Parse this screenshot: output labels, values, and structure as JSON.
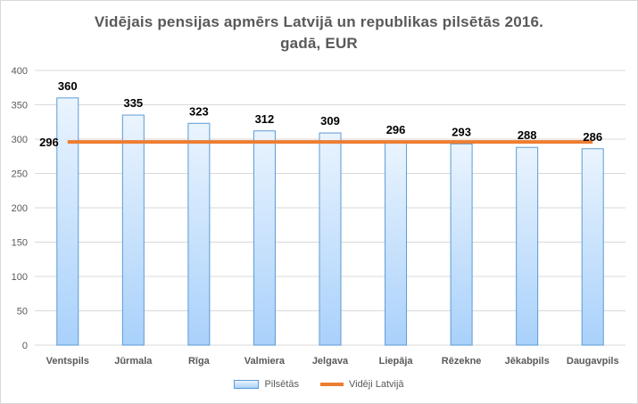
{
  "chart_data": {
    "type": "bar",
    "title_line1": "Vidējais  pensijas  apmērs  Latvijā  un  republikas  pilsētās  2016.",
    "title_line2": "gadā, EUR",
    "categories": [
      "Ventspils",
      "Jūrmala",
      "Rīga",
      "Valmiera",
      "Jelgava",
      "Liepāja",
      "Rēzekne",
      "Jēkabpils",
      "Daugavpils"
    ],
    "series": [
      {
        "name": "Pilsētās",
        "values": [
          360,
          335,
          323,
          312,
          309,
          296,
          293,
          288,
          286
        ]
      }
    ],
    "reference_line": {
      "name": "Vidēji Latvijā",
      "value": 296,
      "label": "296"
    },
    "ylim": [
      0,
      400
    ],
    "yticks": [
      0,
      50,
      100,
      150,
      200,
      250,
      300,
      350,
      400
    ],
    "grid": true,
    "legend_position": "bottom",
    "colors": {
      "bar_fill_top": "#eaf4fe",
      "bar_fill_bottom": "#a9d1fb",
      "bar_border": "#5b9bd5",
      "reference_line": "#ed7d31",
      "grid": "#d9d9d9"
    }
  }
}
